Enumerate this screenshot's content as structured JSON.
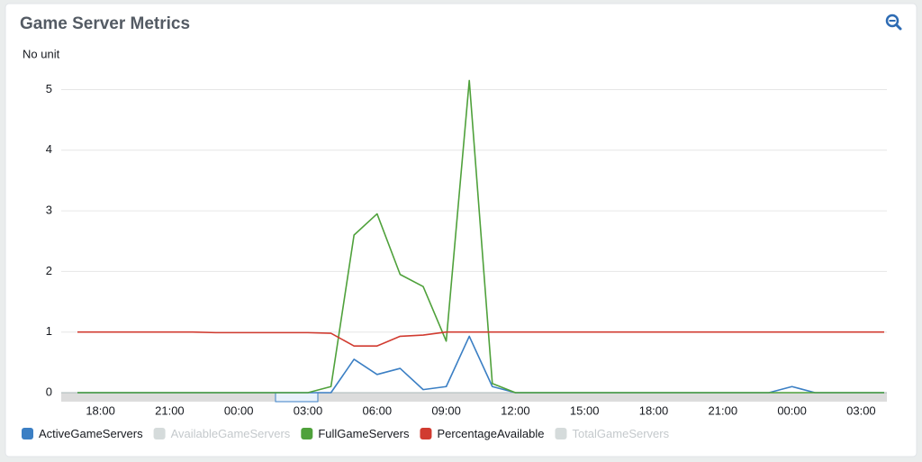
{
  "chart_data": {
    "type": "line",
    "title": "Game Server Metrics",
    "y_label": "No unit",
    "categories": [
      null,
      "18:00",
      null,
      null,
      "21:00",
      null,
      null,
      "00:00",
      null,
      null,
      "03:00",
      null,
      null,
      "06:00",
      null,
      null,
      "09:00",
      null,
      null,
      "12:00",
      null,
      null,
      "15:00",
      null,
      null,
      "18:00",
      null,
      null,
      "21:00",
      null,
      null,
      "00:00",
      null,
      null,
      "03:00",
      null
    ],
    "series": [
      {
        "name": "ActiveGameServers",
        "color": "#3b7fc4",
        "visible": true,
        "values": [
          0,
          0,
          0,
          0,
          0,
          0,
          0,
          0,
          0,
          0,
          0,
          0,
          0.55,
          0.3,
          0.4,
          0.05,
          0.1,
          0.93,
          0.1,
          0,
          0,
          0,
          0,
          0,
          0,
          0,
          0,
          0,
          0,
          0,
          0,
          0.1,
          0,
          0,
          0,
          0
        ]
      },
      {
        "name": "AvailableGameServers",
        "color": "#d5dbdb",
        "visible": false
      },
      {
        "name": "FullGameServers",
        "color": "#4fa13b",
        "visible": true,
        "values": [
          0,
          0,
          0,
          0,
          0,
          0,
          0,
          0,
          0,
          0,
          0,
          0.1,
          2.6,
          2.95,
          1.95,
          1.75,
          0.85,
          5.15,
          0.15,
          0,
          0,
          0,
          0,
          0,
          0,
          0,
          0,
          0,
          0,
          0,
          0,
          0,
          0,
          0,
          0,
          0
        ]
      },
      {
        "name": "PercentageAvailable",
        "color": "#d13b30",
        "visible": true,
        "values": [
          1,
          1,
          1,
          1,
          1,
          1,
          0.99,
          0.99,
          0.99,
          0.99,
          0.99,
          0.98,
          0.77,
          0.77,
          0.93,
          0.95,
          1,
          1,
          1,
          1,
          1,
          1,
          1,
          1,
          1,
          1,
          1,
          1,
          1,
          1,
          1,
          1,
          1,
          1,
          1,
          1
        ]
      },
      {
        "name": "TotalGameServers",
        "color": "#d5dbdb",
        "visible": false
      }
    ],
    "ylim": [
      0,
      5.2
    ],
    "yticks": [
      0,
      1,
      2,
      3,
      4,
      5
    ],
    "grid": true
  }
}
